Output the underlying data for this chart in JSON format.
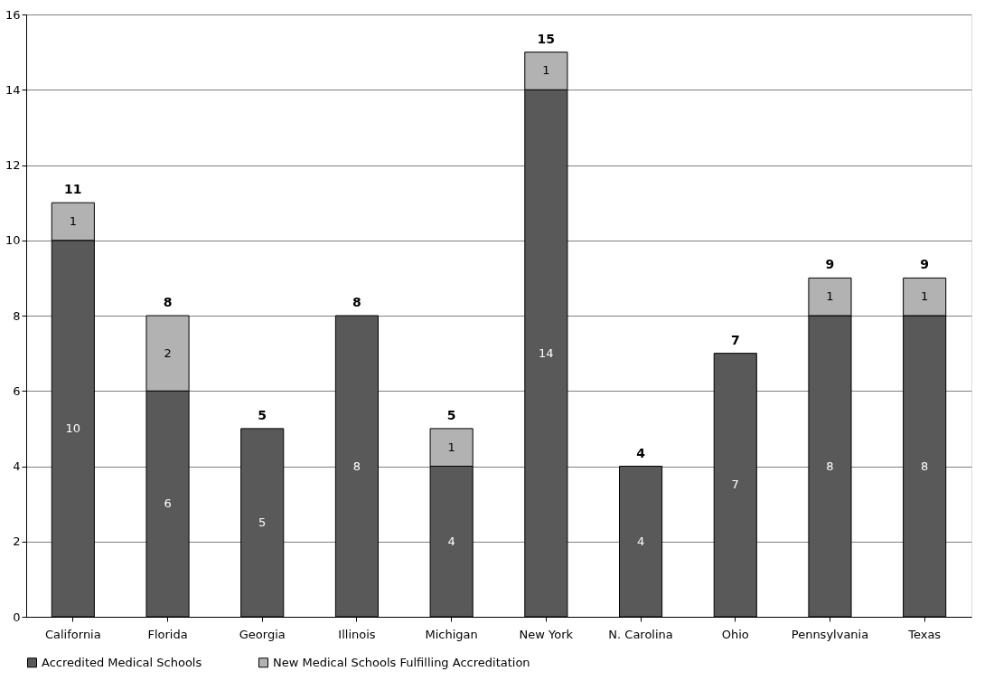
{
  "chart_data": {
    "type": "bar",
    "stacked": true,
    "categories": [
      "California",
      "Florida",
      "Georgia",
      "Illinois",
      "Michigan",
      "New York",
      "N. Carolina",
      "Ohio",
      "Pennsylvania",
      "Texas"
    ],
    "series": [
      {
        "name": "Accredited Medical Schools",
        "color": "#595959",
        "values": [
          10,
          6,
          5,
          8,
          4,
          14,
          4,
          7,
          8,
          8
        ]
      },
      {
        "name": "New Medical Schools Fulfilling  Accreditation",
        "color": "#b2b2b2",
        "values": [
          1,
          2,
          null,
          null,
          1,
          1,
          null,
          null,
          1,
          1
        ]
      }
    ],
    "totals": [
      "11",
      "8",
      "5",
      "8",
      "5",
      "15",
      "4",
      "7",
      "9",
      "9"
    ],
    "data_labels": true,
    "ylim": [
      0,
      16
    ],
    "yticks": [
      0,
      2,
      4,
      6,
      8,
      10,
      12,
      14,
      16
    ],
    "grid": "y",
    "legend": "bottom"
  }
}
